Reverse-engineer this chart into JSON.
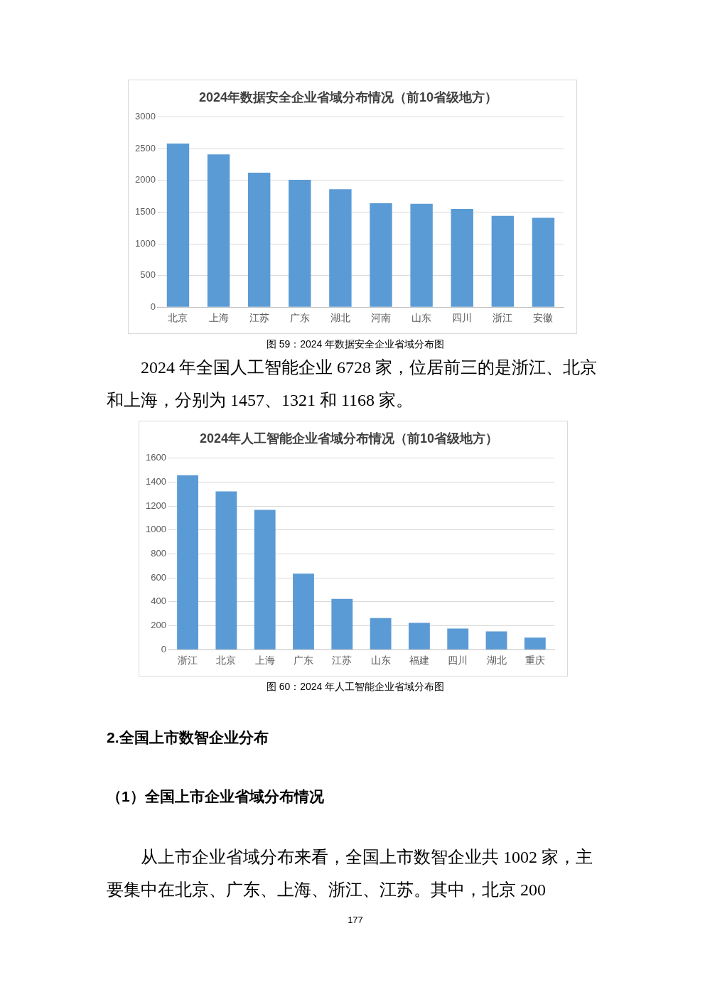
{
  "chart_data": [
    {
      "type": "bar",
      "title": "2024年数据安全企业省域分布情况（前10省级地方）",
      "categories": [
        "北京",
        "上海",
        "江苏",
        "广东",
        "湖北",
        "河南",
        "山东",
        "四川",
        "浙江",
        "安徽"
      ],
      "values": [
        2580,
        2410,
        2120,
        2010,
        1860,
        1640,
        1630,
        1550,
        1440,
        1410
      ],
      "color": "#5b9bd5",
      "ylim": [
        0,
        3000
      ],
      "yticks": [
        0,
        500,
        1000,
        1500,
        2000,
        2500,
        3000
      ],
      "grid": "y",
      "annotations": [
        "图 59：2024 年数据安全企业省域分布图",
        "2024 年全国人工智能企业 6728 家，位居前三的是浙江、北京和上海，分别为 1457、1321 和 1168 家。"
      ]
    },
    {
      "type": "bar",
      "title": "2024年人工智能企业省域分布情况（前10省级地方）",
      "categories": [
        "浙江",
        "北京",
        "上海",
        "广东",
        "江苏",
        "山东",
        "福建",
        "四川",
        "湖北",
        "重庆"
      ],
      "values": [
        1457,
        1321,
        1168,
        635,
        424,
        264,
        224,
        176,
        153,
        100
      ],
      "color": "#5b9bd5",
      "ylim": [
        0,
        1600
      ],
      "yticks": [
        0,
        200,
        400,
        600,
        800,
        1000,
        1200,
        1400,
        1600
      ],
      "grid": "y",
      "annotations": [
        "图 60：2024 年人工智能企业省域分布图",
        "2.全国上市数智企业分布",
        "（1）全国上市企业省域分布情况",
        "从上市企业省域分布来看，全国上市数智企业共 1002 家，主要集中在北京、广东、上海、浙江、江苏。其中，北京 200",
        "177"
      ]
    }
  ]
}
